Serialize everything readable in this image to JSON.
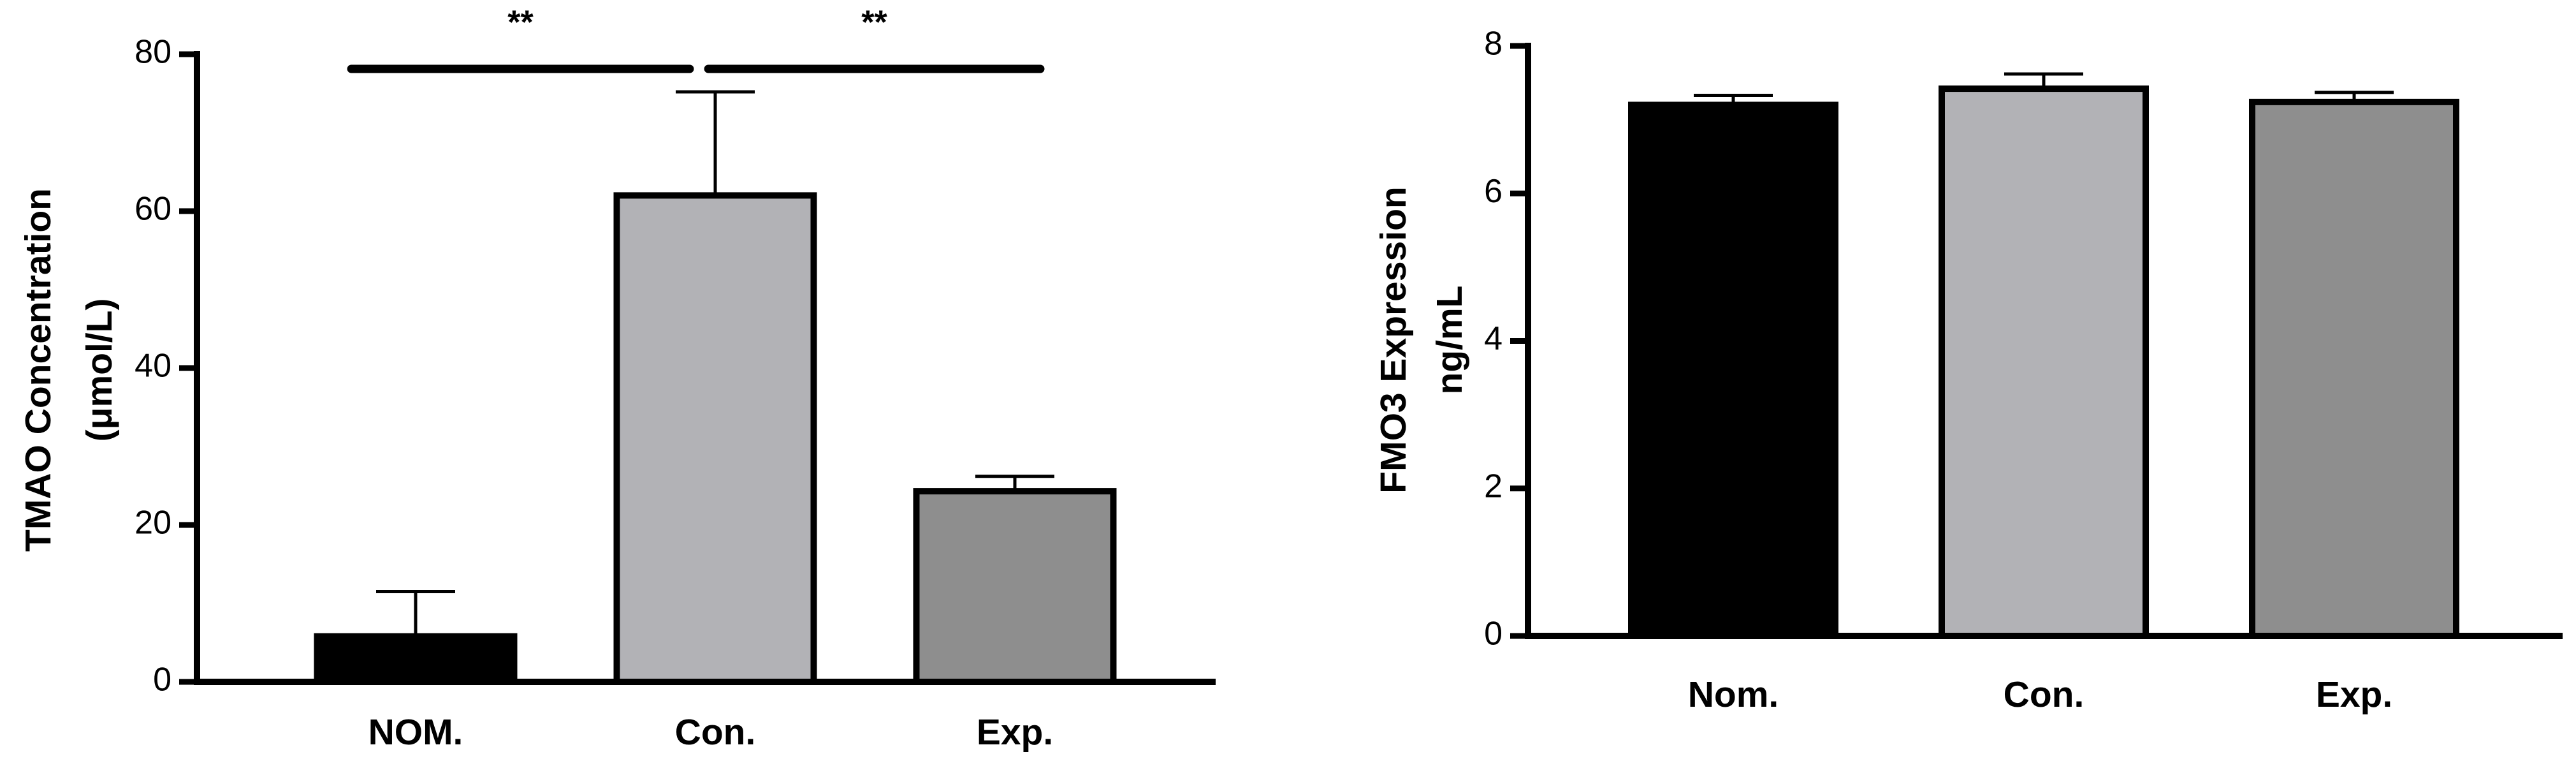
{
  "chart_data": [
    {
      "type": "bar",
      "ylabel": [
        "TMAO Concentration",
        "(μmol/L)"
      ],
      "categories": [
        "NOM.",
        "Con.",
        "Exp."
      ],
      "values": [
        5.8,
        62,
        24.3
      ],
      "errors": [
        5.7,
        13.2,
        1.9
      ],
      "colors": [
        "#000000",
        "#b2b2b6",
        "#8e8e8e"
      ],
      "ylim": [
        0,
        80
      ],
      "yticks": [
        0,
        20,
        40,
        60,
        80
      ],
      "annotations": [
        {
          "text": "**",
          "from": 0,
          "to": 1
        },
        {
          "text": "**",
          "from": 1,
          "to": 2
        }
      ]
    },
    {
      "type": "bar",
      "ylabel": [
        "FMO3 Expression",
        "ng/mL"
      ],
      "categories": [
        "Nom.",
        "Con.",
        "Exp."
      ],
      "values": [
        7.2,
        7.42,
        7.24
      ],
      "errors": [
        0.13,
        0.2,
        0.13
      ],
      "colors": [
        "#000000",
        "#b2b2b6",
        "#8e8e8e"
      ],
      "ylim": [
        0,
        8
      ],
      "yticks": [
        0,
        2,
        4,
        6,
        8
      ]
    }
  ]
}
